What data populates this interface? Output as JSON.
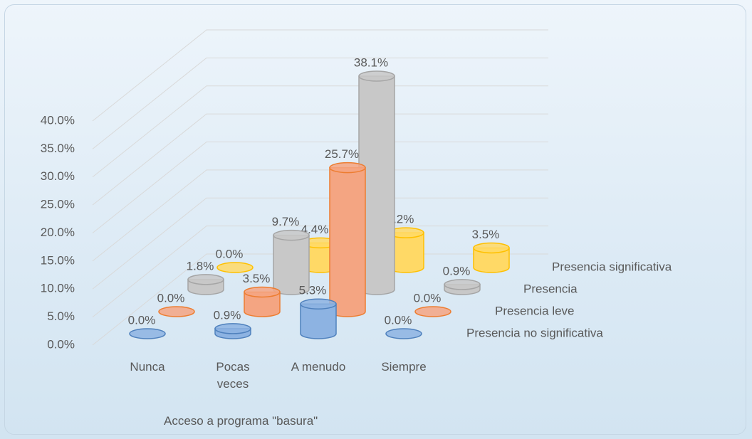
{
  "chart_data": {
    "type": "bar",
    "x_label": "Acceso a programa \"basura\"",
    "categories": [
      "Nunca",
      "Pocas veces",
      "A menudo",
      "Siempre"
    ],
    "series": [
      {
        "name": "Presencia no significativa",
        "color": "#8db3e2",
        "values": [
          0,
          0.9,
          5.3,
          0
        ],
        "value_labels": [
          "0.0%",
          "0.9%",
          "5.3%",
          "0.0%"
        ]
      },
      {
        "name": "Presencia leve",
        "color": "#f4a582",
        "values": [
          0,
          3.5,
          25.7,
          0
        ],
        "value_labels": [
          "0.0%",
          "3.5%",
          "25.7%",
          "0.0%"
        ]
      },
      {
        "name": "Presencia",
        "color": "#c8c8c8",
        "values": [
          1.8,
          9.7,
          38.1,
          0.9
        ],
        "value_labels": [
          "1.8%",
          "9.7%",
          "38.1%",
          "0.9%"
        ]
      },
      {
        "name": "Presencia significativa",
        "color": "#ffd966",
        "values": [
          0,
          4.4,
          6.2,
          3.5
        ],
        "value_labels": [
          "0.0%",
          "4.4%",
          "6.2%",
          "3.5%"
        ]
      }
    ],
    "ylim": [
      0,
      40
    ],
    "yticks": [
      {
        "value": 0,
        "label": "0.0%"
      },
      {
        "value": 5,
        "label": "5.0%"
      },
      {
        "value": 10,
        "label": "10.0%"
      },
      {
        "value": 15,
        "label": "15.0%"
      },
      {
        "value": 20,
        "label": "20.0%"
      },
      {
        "value": 25,
        "label": "25.0%"
      },
      {
        "value": 30,
        "label": "30.0%"
      },
      {
        "value": 35,
        "label": "35.0%"
      },
      {
        "value": 40,
        "label": "40.0%"
      }
    ],
    "grid": true
  }
}
